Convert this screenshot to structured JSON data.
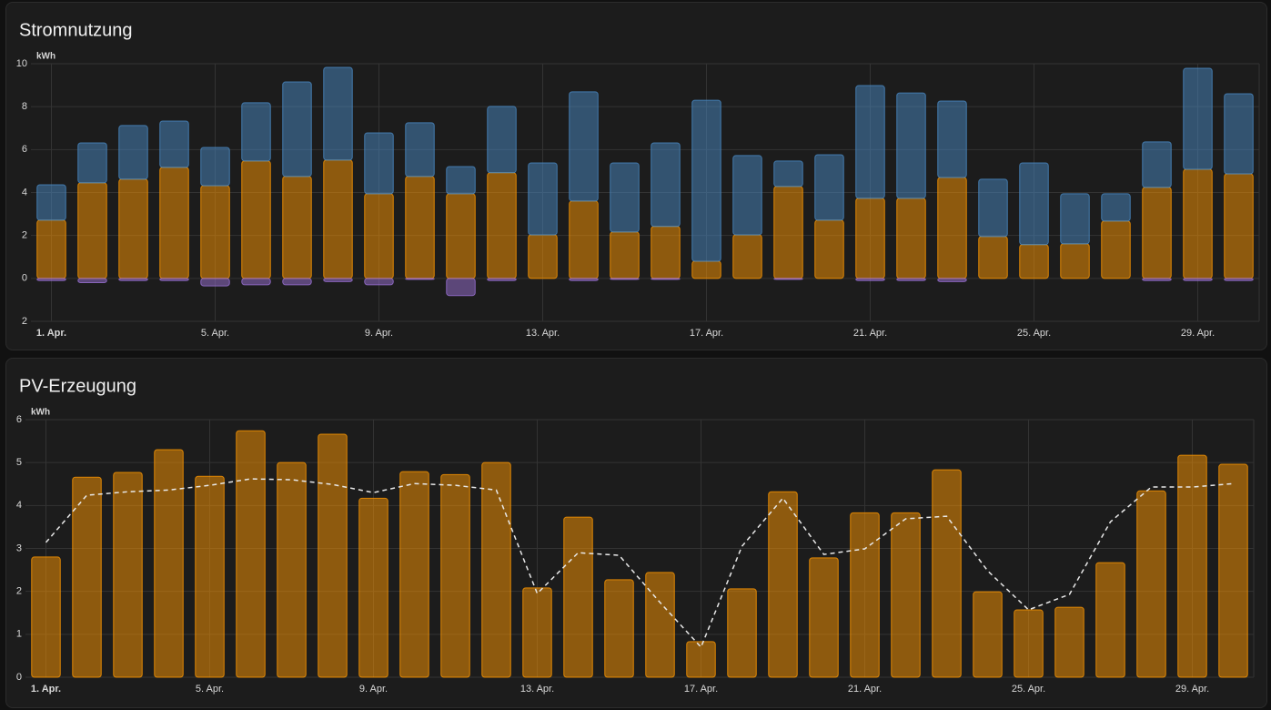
{
  "chart_data": [
    {
      "type": "bar",
      "title": "Stromnutzung",
      "y_label": "kWh",
      "stacked": true,
      "categories": [
        "1. Apr.",
        null,
        null,
        null,
        "5. Apr.",
        null,
        null,
        null,
        "9. Apr.",
        null,
        null,
        null,
        "13. Apr.",
        null,
        null,
        null,
        "17. Apr.",
        null,
        null,
        null,
        "21. Apr.",
        null,
        null,
        null,
        "25. Apr.",
        null,
        null,
        null,
        "29. Apr.",
        null
      ],
      "ylim": [
        -2,
        10
      ],
      "yticks": [
        {
          "value": -2,
          "label": "2"
        },
        0,
        2,
        4,
        6,
        8,
        10
      ],
      "grid": true,
      "series": [
        {
          "color": "#ff9800",
          "values": [
            2.71,
            4.45,
            4.62,
            5.17,
            4.32,
            5.47,
            4.75,
            5.51,
            3.94,
            4.75,
            3.94,
            4.92,
            2.03,
            3.6,
            2.16,
            2.42,
            0.8,
            2.03,
            4.28,
            2.71,
            3.73,
            3.73,
            4.7,
            1.95,
            1.57,
            1.61,
            2.67,
            4.24,
            5.08,
            4.87
          ]
        },
        {
          "color": "#4a8ac4",
          "values": [
            1.65,
            1.86,
            2.5,
            2.16,
            1.78,
            2.71,
            4.4,
            4.32,
            2.84,
            2.5,
            1.27,
            3.09,
            3.35,
            5.09,
            3.22,
            3.89,
            7.5,
            3.69,
            1.19,
            3.05,
            5.25,
            4.91,
            3.56,
            2.67,
            3.81,
            2.33,
            1.27,
            2.12,
            4.71,
            3.73
          ]
        },
        {
          "color": "#9b72d6",
          "values": [
            -0.1,
            -0.2,
            -0.1,
            -0.1,
            -0.35,
            -0.3,
            -0.3,
            -0.15,
            -0.3,
            -0.05,
            -0.8,
            -0.1,
            0,
            -0.1,
            -0.05,
            -0.05,
            0,
            0,
            -0.05,
            0,
            -0.1,
            -0.1,
            -0.15,
            0,
            0,
            0,
            0,
            -0.1,
            -0.1,
            -0.1
          ]
        }
      ]
    },
    {
      "type": "bar",
      "title": "PV-Erzeugung",
      "y_label": "kWh",
      "stacked": false,
      "categories": [
        "1. Apr.",
        null,
        null,
        null,
        "5. Apr.",
        null,
        null,
        null,
        "9. Apr.",
        null,
        null,
        null,
        "13. Apr.",
        null,
        null,
        null,
        "17. Apr.",
        null,
        null,
        null,
        "21. Apr.",
        null,
        null,
        null,
        "25. Apr.",
        null,
        null,
        null,
        "29. Apr.",
        null
      ],
      "ylim": [
        0,
        6
      ],
      "yticks": [
        0,
        1,
        2,
        3,
        4,
        5,
        6
      ],
      "grid": true,
      "series": [
        {
          "color": "#ff9800",
          "values": [
            2.8,
            4.66,
            4.77,
            5.3,
            4.68,
            5.74,
            5.0,
            5.66,
            4.17,
            4.79,
            4.72,
            5.0,
            2.08,
            3.73,
            2.27,
            2.44,
            0.83,
            2.06,
            4.32,
            2.78,
            3.83,
            3.83,
            4.83,
            1.99,
            1.57,
            1.63,
            2.67,
            4.34,
            5.17,
            4.96
          ]
        },
        {
          "type": "line",
          "dashed": true,
          "color": "#e8e8e8",
          "values": [
            3.14,
            4.24,
            4.32,
            4.36,
            4.47,
            4.62,
            4.6,
            4.49,
            4.3,
            4.51,
            4.47,
            4.36,
            1.95,
            2.9,
            2.84,
            1.74,
            0.7,
            3.05,
            4.17,
            2.86,
            2.99,
            3.69,
            3.75,
            2.48,
            1.57,
            1.93,
            3.62,
            4.43,
            4.43,
            4.51
          ]
        }
      ]
    }
  ]
}
